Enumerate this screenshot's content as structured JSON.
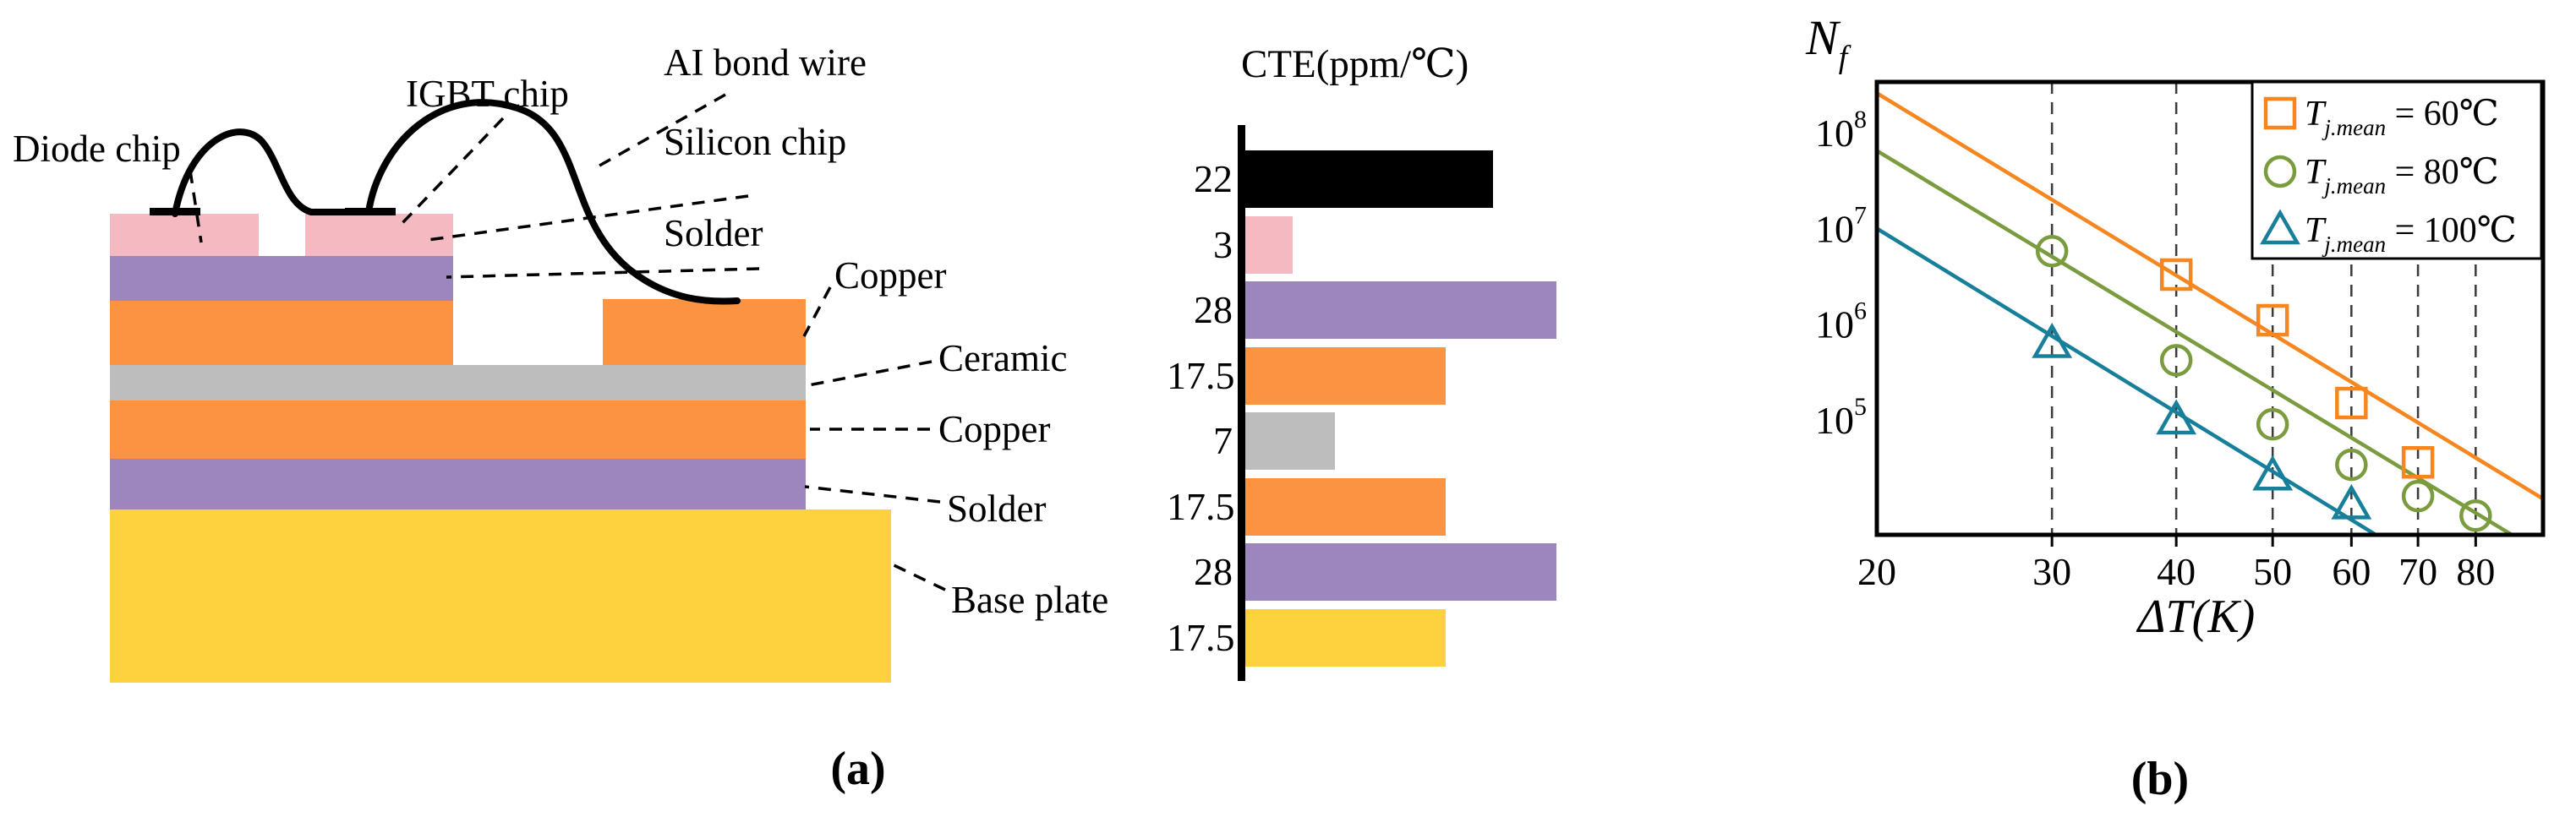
{
  "captions": {
    "a": "(a)",
    "b": "(b)"
  },
  "colors": {
    "chip_pink": "#f4b9c1",
    "solder_purple": "#9d86bd",
    "copper_orange": "#fa9440",
    "ceramic_gray": "#bdbdbd",
    "baseplate_yellow": "#fdd23e",
    "wire_black": "#000000",
    "series_60": "#f6861f",
    "series_80": "#7b9c3e",
    "series_100": "#187f9a"
  },
  "panel_a": {
    "labels": {
      "diode_chip": "Diode chip",
      "igbt_chip": "IGBT chip",
      "al_bond_wire": "AI bond wire",
      "silicon_chip": "Silicon chip",
      "solder_top": "Solder",
      "copper_top": "Copper",
      "ceramic": "Ceramic",
      "copper_bottom": "Copper",
      "solder_bottom": "Solder",
      "base_plate": "Base plate"
    }
  },
  "chart_data": [
    {
      "type": "bar",
      "orientation": "horizontal",
      "title": "CTE(ppm/℃)",
      "categories": [
        "Al bond wire",
        "Silicon chip",
        "Solder",
        "Copper",
        "Ceramic",
        "Copper",
        "Solder",
        "Base plate"
      ],
      "values": [
        22,
        3,
        28,
        17.5,
        7,
        17.5,
        28,
        17.5
      ],
      "value_labels": [
        "22",
        "3",
        "28",
        "17.5",
        "7",
        "17.5",
        "28",
        "17.5"
      ],
      "bar_colors": [
        "#000000",
        "#f4b9c1",
        "#9d86bd",
        "#fa9440",
        "#bdbdbd",
        "#fa9440",
        "#9d86bd",
        "#fdd23e"
      ],
      "xlabel": "",
      "ylabel": "",
      "xlim": [
        0,
        30
      ],
      "grid": false
    },
    {
      "type": "scatter",
      "title": "",
      "xlabel": "ΔT(K)",
      "ylabel_main": "N",
      "ylabel_sub": "f",
      "x_scale": "log",
      "y_scale": "log",
      "xlim": [
        20,
        93.5
      ],
      "ylim": [
        6300,
        340000000
      ],
      "x_ticks": [
        20,
        30,
        40,
        50,
        60,
        70,
        80
      ],
      "y_tick_base": "10",
      "y_tick_exponents": [
        8,
        7,
        6,
        5
      ],
      "gridlines_x": [
        30,
        40,
        50,
        60,
        70,
        80
      ],
      "grid_style": "dashed-vertical",
      "legend_position": "top-right",
      "series": [
        {
          "name": "T_j.mean = 60℃",
          "legend_t": "T",
          "legend_sub": "j.mean",
          "legend_eq": " = 60℃",
          "marker": "square",
          "color": "#f6861f",
          "fit_line": {
            "x": [
              20,
              93.5
            ],
            "y": [
              260000000,
              15000
            ]
          },
          "points": [
            [
              40,
              3300000
            ],
            [
              50,
              1100000
            ],
            [
              60,
              150000
            ],
            [
              70,
              36000
            ]
          ]
        },
        {
          "name": "T_j.mean = 80℃",
          "legend_t": "T",
          "legend_sub": "j.mean",
          "legend_eq": " = 80℃",
          "marker": "circle",
          "color": "#7b9c3e",
          "fit_line": {
            "x": [
              20,
              87
            ],
            "y": [
              65000000,
              6300
            ]
          },
          "points": [
            [
              30,
              5800000
            ],
            [
              40,
              420000
            ],
            [
              50,
              90000
            ],
            [
              60,
              34000
            ],
            [
              70,
              16000
            ],
            [
              80,
              10000
            ]
          ]
        },
        {
          "name": "T_j.mean = 100℃",
          "legend_t": "T",
          "legend_sub": "j.mean",
          "legend_eq": " = 100℃",
          "marker": "triangle",
          "color": "#187f9a",
          "fit_line": {
            "x": [
              20,
              63.5
            ],
            "y": [
              10000000,
              6300
            ]
          },
          "points": [
            [
              30,
              630000
            ],
            [
              40,
              100000
            ],
            [
              50,
              26000
            ],
            [
              60,
              13000
            ]
          ]
        }
      ]
    }
  ]
}
